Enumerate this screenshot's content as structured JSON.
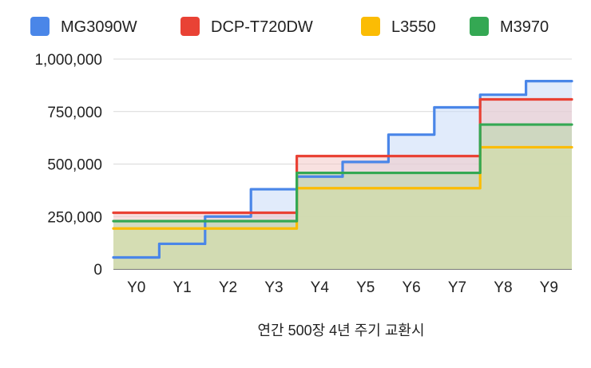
{
  "chart_data": {
    "type": "area",
    "title": "",
    "xlabel": "연간 500장 4년 주기 교환시",
    "ylabel": "",
    "categories": [
      "Y0",
      "Y1",
      "Y2",
      "Y3",
      "Y4",
      "Y5",
      "Y6",
      "Y7",
      "Y8",
      "Y9"
    ],
    "yticks": [
      "0",
      "250,000",
      "500,000",
      "750,000",
      "1,000,000"
    ],
    "ylim": [
      0,
      1000000
    ],
    "grid": true,
    "legend_position": "top",
    "series": [
      {
        "name": "MG3090W",
        "color": "#4a86e8",
        "fill": "#c9daf8",
        "values": [
          55000,
          120000,
          250000,
          380000,
          440000,
          510000,
          640000,
          770000,
          830000,
          895000
        ]
      },
      {
        "name": "DCP-T720DW",
        "color": "#e94235",
        "fill": "#f3c9c6",
        "values": [
          268000,
          268000,
          268000,
          268000,
          538000,
          538000,
          538000,
          538000,
          808000,
          808000
        ]
      },
      {
        "name": "L3550",
        "color": "#fbbc04",
        "fill": "#fbe8a6",
        "values": [
          193000,
          193000,
          193000,
          193000,
          385000,
          385000,
          385000,
          385000,
          580000,
          580000
        ]
      },
      {
        "name": "M3970",
        "color": "#34a853",
        "fill": "#b7d7a8",
        "values": [
          228000,
          228000,
          228000,
          228000,
          458000,
          458000,
          458000,
          458000,
          688000,
          688000
        ]
      }
    ]
  }
}
